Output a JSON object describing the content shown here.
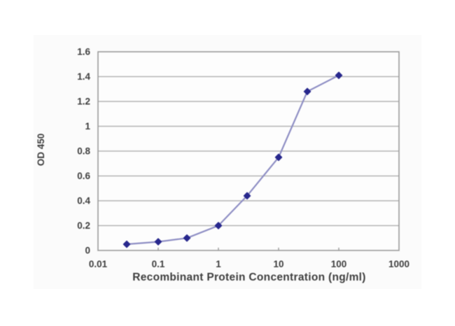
{
  "chart_data": {
    "type": "line",
    "title": "",
    "xlabel": "Recombinant Protein Concentration (ng/ml)",
    "ylabel": "OD 450",
    "x_scale": "log",
    "xlim": [
      0.01,
      1000
    ],
    "ylim": [
      0,
      1.6
    ],
    "x_tick_values": [
      0.01,
      0.1,
      1,
      10,
      100,
      1000
    ],
    "x_tick_labels": [
      "0.01",
      "0.1",
      "1",
      "10",
      "100",
      "1000"
    ],
    "y_tick_values": [
      0,
      0.2,
      0.4,
      0.6,
      0.8,
      1,
      1.2,
      1.4,
      1.6
    ],
    "y_tick_labels": [
      "0",
      "0.2",
      "0.4",
      "0.6",
      "0.8",
      "1",
      "1.2",
      "1.4",
      "1.6"
    ],
    "grid": "horizontal",
    "legend": "none",
    "series": [
      {
        "x": [
          0.03,
          0.1,
          0.3,
          1,
          3,
          10,
          30,
          100
        ],
        "y": [
          0.05,
          0.07,
          0.1,
          0.2,
          0.44,
          0.75,
          1.28,
          1.41
        ],
        "marker": "diamond"
      }
    ],
    "colors": {
      "line": "#8e8ec4",
      "marker": "#28288d",
      "grid": "#b4b4b4",
      "border": "#9b9b9b",
      "text": "#3e3e3e",
      "plot_background": "#fdfdfd"
    }
  }
}
